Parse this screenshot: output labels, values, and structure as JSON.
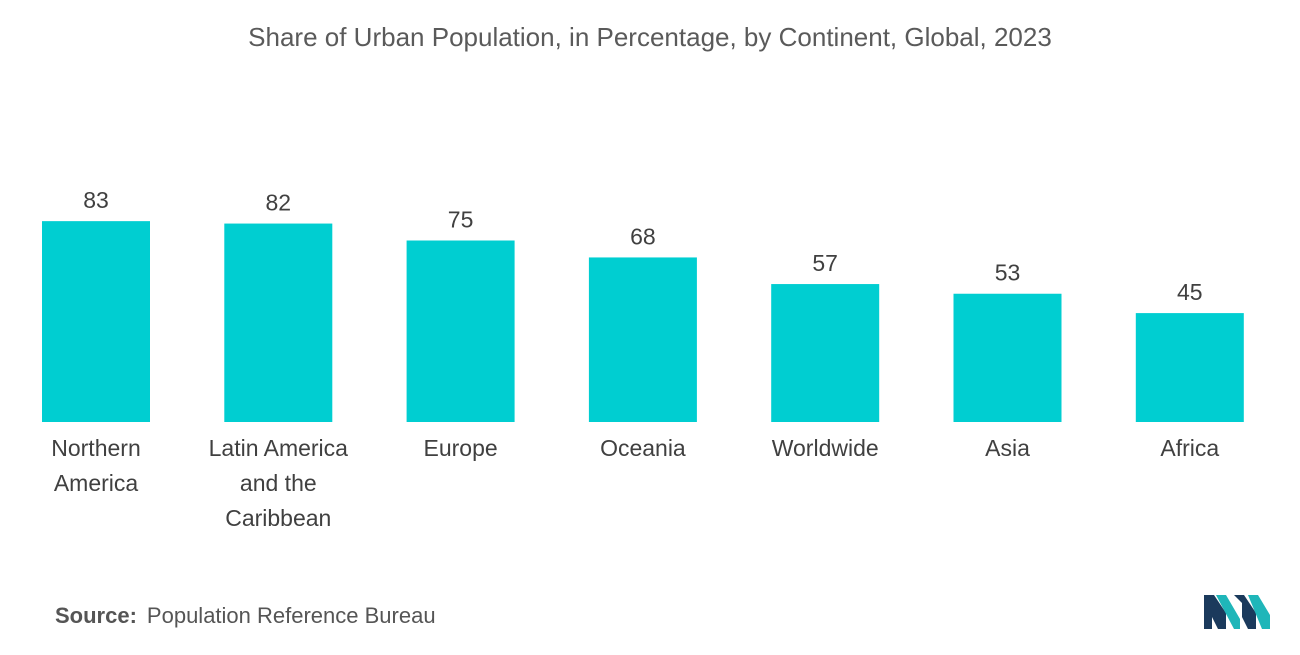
{
  "chart_data": {
    "type": "bar",
    "title": "Share of Urban Population, in Percentage, by Continent, Global, 2023",
    "categories": [
      [
        "Northern",
        "America"
      ],
      [
        "Latin America",
        "and the",
        "Caribbean"
      ],
      [
        "Europe"
      ],
      [
        "Oceania"
      ],
      [
        "Worldwide"
      ],
      [
        "Asia"
      ],
      [
        "Africa"
      ]
    ],
    "values": [
      83,
      82,
      75,
      68,
      57,
      53,
      45
    ],
    "xlabel": "",
    "ylabel": "",
    "ylim": [
      0,
      100
    ],
    "grid": false,
    "bar_color": "#00CED1"
  },
  "source": {
    "label": "Source:",
    "text": "Population Reference Bureau"
  },
  "colors": {
    "logo_dark": "#1B3A5C",
    "logo_teal": "#1FB6B9"
  }
}
